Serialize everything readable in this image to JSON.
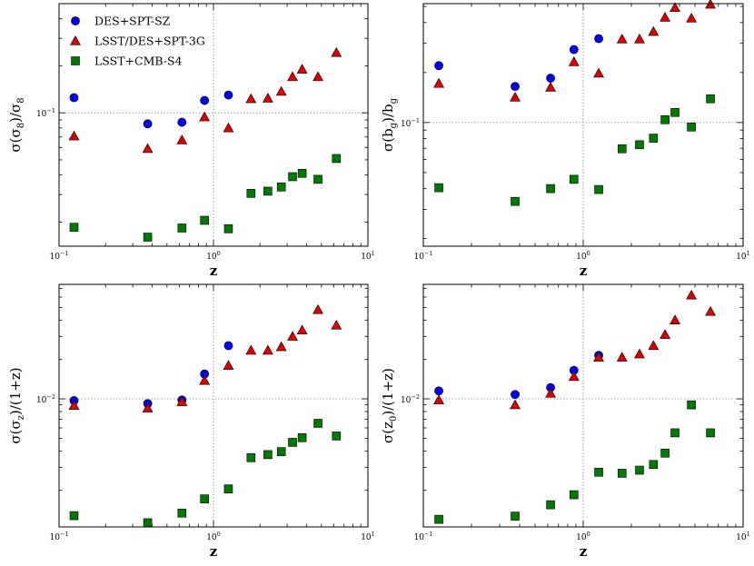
{
  "colors": {
    "des_spt_sz": "#0000ee",
    "lsst_des_spt3g": "#dd0000",
    "lsst_cmb_s4": "#007a00"
  },
  "chart_data": [
    {
      "type": "scatter",
      "id": "sigma8",
      "ylabel": "σ(σ8)/σ8",
      "xlabel": "z",
      "xscale": "log",
      "yscale": "log",
      "xlim": [
        0.1,
        10
      ],
      "ylim": [
        0.014,
        0.5
      ],
      "reference_lines": {
        "x": 1,
        "y": 0.1
      },
      "xtick_labels": [
        {
          "value": 0.1,
          "base": "10",
          "exp": "−1"
        },
        {
          "value": 1,
          "base": "10",
          "exp": "0"
        },
        {
          "value": 10,
          "base": "10",
          "exp": "1"
        }
      ],
      "ytick_labels": [
        {
          "value": 0.1,
          "base": "10",
          "exp": "−1"
        }
      ],
      "legend": {
        "position": "top-left",
        "entries": [
          {
            "label": "DES+SPT-SZ",
            "marker": "circle",
            "series": 0
          },
          {
            "label": "LSST/DES+SPT-3G",
            "marker": "triangle",
            "series": 1
          },
          {
            "label": "LSST+CMB-S4",
            "marker": "square",
            "series": 2
          }
        ]
      },
      "series": [
        {
          "name": "DES+SPT-SZ",
          "marker": "circle",
          "x": [
            0.125,
            0.375,
            0.625,
            0.875,
            1.25
          ],
          "y": [
            0.125,
            0.085,
            0.087,
            0.12,
            0.13
          ]
        },
        {
          "name": "LSST/DES+SPT-3G",
          "marker": "triangle",
          "x": [
            0.125,
            0.375,
            0.625,
            0.875,
            1.25,
            1.75,
            2.25,
            2.75,
            3.25,
            3.75,
            4.75,
            6.25
          ],
          "y": [
            0.071,
            0.059,
            0.067,
            0.094,
            0.08,
            0.123,
            0.124,
            0.137,
            0.17,
            0.19,
            0.17,
            0.243
          ]
        },
        {
          "name": "LSST+CMB-S4",
          "marker": "square",
          "x": [
            0.125,
            0.375,
            0.625,
            0.875,
            1.25,
            1.75,
            2.25,
            2.75,
            3.25,
            3.75,
            4.75,
            6.25
          ],
          "y": [
            0.0185,
            0.016,
            0.0183,
            0.0205,
            0.0181,
            0.0305,
            0.0315,
            0.0335,
            0.039,
            0.041,
            0.0375,
            0.051
          ]
        }
      ]
    },
    {
      "type": "scatter",
      "id": "bg",
      "ylabel": "σ(bg)/bg",
      "xlabel": "z",
      "xscale": "log",
      "yscale": "log",
      "xlim": [
        0.1,
        10
      ],
      "ylim": [
        0.018,
        0.52
      ],
      "reference_lines": {
        "x": 1,
        "y": 0.1
      },
      "xtick_labels": [
        {
          "value": 0.1,
          "base": "10",
          "exp": "−1"
        },
        {
          "value": 1,
          "base": "10",
          "exp": "0"
        },
        {
          "value": 10,
          "base": "10",
          "exp": "1"
        }
      ],
      "ytick_labels": [
        {
          "value": 0.1,
          "base": "10",
          "exp": "−1"
        }
      ],
      "series": [
        {
          "name": "DES+SPT-SZ",
          "marker": "circle",
          "x": [
            0.125,
            0.375,
            0.625,
            0.875,
            1.25
          ],
          "y": [
            0.22,
            0.165,
            0.185,
            0.275,
            0.32
          ]
        },
        {
          "name": "LSST/DES+SPT-3G",
          "marker": "triangle",
          "x": [
            0.125,
            0.375,
            0.625,
            0.875,
            1.25,
            1.75,
            2.25,
            2.75,
            3.25,
            3.75,
            4.75,
            6.25
          ],
          "y": [
            0.172,
            0.142,
            0.163,
            0.232,
            0.198,
            0.318,
            0.318,
            0.353,
            0.43,
            0.492,
            0.425,
            0.515
          ]
        },
        {
          "name": "LSST+CMB-S4",
          "marker": "square",
          "x": [
            0.125,
            0.375,
            0.625,
            0.875,
            1.25,
            1.75,
            2.25,
            2.75,
            3.25,
            3.75,
            4.75,
            6.25
          ],
          "y": [
            0.0405,
            0.0335,
            0.04,
            0.0455,
            0.0395,
            0.0695,
            0.0735,
            0.0805,
            0.104,
            0.115,
            0.094,
            0.139
          ]
        }
      ]
    },
    {
      "type": "scatter",
      "id": "sigz",
      "ylabel": "σ(σz)/(1+z)",
      "xlabel": "z",
      "xscale": "log",
      "yscale": "log",
      "xlim": [
        0.1,
        10
      ],
      "ylim": [
        0.00105,
        0.075
      ],
      "reference_lines": {
        "x": 1,
        "y": 0.01
      },
      "xtick_labels": [
        {
          "value": 0.1,
          "base": "10",
          "exp": "−1"
        },
        {
          "value": 1,
          "base": "10",
          "exp": "0"
        },
        {
          "value": 10,
          "base": "10",
          "exp": "1"
        }
      ],
      "ytick_labels": [
        {
          "value": 0.01,
          "base": "10",
          "exp": "−2"
        }
      ],
      "series": [
        {
          "name": "DES+SPT-SZ",
          "marker": "circle",
          "x": [
            0.125,
            0.375,
            0.625,
            0.875,
            1.25
          ],
          "y": [
            0.0097,
            0.0092,
            0.0098,
            0.0155,
            0.0255
          ]
        },
        {
          "name": "LSST/DES+SPT-3G",
          "marker": "triangle",
          "x": [
            0.125,
            0.375,
            0.625,
            0.875,
            1.25,
            1.75,
            2.25,
            2.75,
            3.25,
            3.75,
            4.75,
            6.25
          ],
          "y": [
            0.0089,
            0.0085,
            0.0095,
            0.0138,
            0.018,
            0.0235,
            0.0235,
            0.025,
            0.03,
            0.0335,
            0.048,
            0.0365
          ]
        },
        {
          "name": "LSST+CMB-S4",
          "marker": "square",
          "x": [
            0.125,
            0.375,
            0.625,
            0.875,
            1.25,
            1.75,
            2.25,
            2.75,
            3.25,
            3.75,
            4.75,
            6.25
          ],
          "y": [
            0.00128,
            0.00113,
            0.00134,
            0.00172,
            0.00205,
            0.00355,
            0.00375,
            0.00395,
            0.00465,
            0.00505,
            0.0065,
            0.0052
          ]
        }
      ]
    },
    {
      "type": "scatter",
      "id": "z0",
      "ylabel": "σ(z0)/(1+z)",
      "xlabel": "z",
      "xscale": "log",
      "yscale": "log",
      "xlim": [
        0.1,
        10
      ],
      "ylim": [
        0.00105,
        0.075
      ],
      "reference_lines": {
        "x": 1,
        "y": 0.01
      },
      "xtick_labels": [
        {
          "value": 0.1,
          "base": "10",
          "exp": "−1"
        },
        {
          "value": 1,
          "base": "10",
          "exp": "0"
        },
        {
          "value": 10,
          "base": "10",
          "exp": "1"
        }
      ],
      "ytick_labels": [
        {
          "value": 0.01,
          "base": "10",
          "exp": "−2"
        }
      ],
      "series": [
        {
          "name": "DES+SPT-SZ",
          "marker": "circle",
          "x": [
            0.125,
            0.375,
            0.625,
            0.875,
            1.25
          ],
          "y": [
            0.0115,
            0.0108,
            0.0122,
            0.0165,
            0.0215
          ]
        },
        {
          "name": "LSST/DES+SPT-3G",
          "marker": "triangle",
          "x": [
            0.125,
            0.375,
            0.625,
            0.875,
            1.25,
            1.75,
            2.25,
            2.75,
            3.25,
            3.75,
            4.75,
            6.25
          ],
          "y": [
            0.0098,
            0.009,
            0.011,
            0.0148,
            0.0208,
            0.0208,
            0.022,
            0.0255,
            0.031,
            0.04,
            0.062,
            0.0465
          ]
        },
        {
          "name": "LSST+CMB-S4",
          "marker": "square",
          "x": [
            0.125,
            0.375,
            0.625,
            0.875,
            1.25,
            1.75,
            2.25,
            2.75,
            3.25,
            3.75,
            4.75,
            6.25
          ],
          "y": [
            0.0012,
            0.00127,
            0.00155,
            0.00185,
            0.00275,
            0.0027,
            0.00285,
            0.00315,
            0.00385,
            0.0055,
            0.009,
            0.0055
          ]
        }
      ]
    }
  ]
}
